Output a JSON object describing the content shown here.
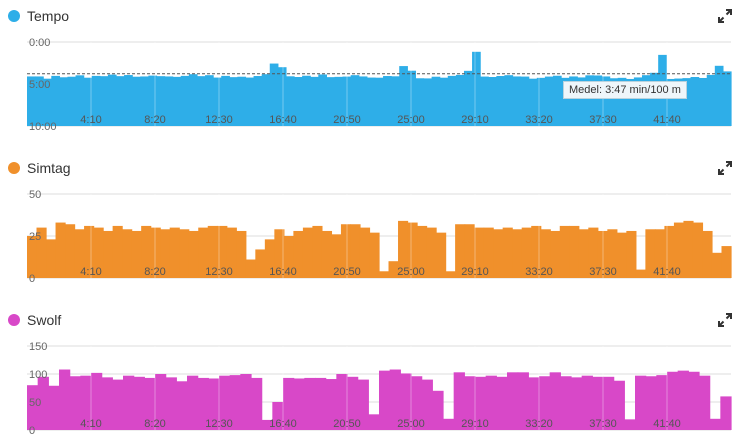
{
  "colors": {
    "tempo": "#2eaee8",
    "simtag": "#f0902b",
    "swolf": "#d848c8",
    "grid": "#dddddd"
  },
  "icons": {
    "expand": "expand-arrows-icon"
  },
  "chart_data": [
    {
      "type": "bar",
      "title": "Tempo",
      "y_tick_labels": [
        "0:00",
        "5:00",
        "10:00"
      ],
      "ylim": [
        0,
        600
      ],
      "y_inverted": true,
      "x_tick_labels": [
        "4:10",
        "8:20",
        "12:30",
        "16:40",
        "20:50",
        "25:00",
        "29:10",
        "33:20",
        "37:30",
        "41:40"
      ],
      "x_range": [
        "0:00",
        "45:50"
      ],
      "average_label": "Medel: 3:47 min/100 m",
      "average_value": 227,
      "series": [
        {
          "values_unit": "seconds per 100 m",
          "values": [
            246,
            246,
            262,
            242,
            252,
            248,
            238,
            255,
            242,
            244,
            233,
            244,
            236,
            248,
            246,
            240,
            244,
            246,
            249,
            242,
            230,
            244,
            237,
            254,
            242,
            251,
            248,
            254,
            243,
            230,
            154,
            180,
            245,
            250,
            241,
            249,
            232,
            251,
            249,
            247,
            237,
            246,
            254,
            255,
            243,
            245,
            172,
            205,
            259,
            260,
            248,
            255,
            242,
            235,
            206,
            70,
            247,
            250,
            243,
            237,
            246,
            247,
            262,
            256,
            247,
            241,
            256,
            246,
            253,
            238,
            239,
            246,
            259,
            256,
            264,
            253,
            237,
            220,
            92,
            264,
            261,
            258,
            250,
            257,
            235,
            170,
            210
          ]
        }
      ]
    },
    {
      "type": "bar",
      "title": "Simtag",
      "y_tick_labels": [
        "0",
        "25",
        "50"
      ],
      "ylim": [
        0,
        50
      ],
      "x_tick_labels": [
        "4:10",
        "8:20",
        "12:30",
        "16:40",
        "20:50",
        "25:00",
        "29:10",
        "33:20",
        "37:30",
        "41:40"
      ],
      "x_range": [
        "0:00",
        "45:50"
      ],
      "series": [
        {
          "values": [
            25,
            30,
            23,
            33,
            32,
            29,
            31,
            30,
            28,
            31,
            29,
            28,
            31,
            30,
            29,
            30,
            29,
            28,
            30,
            31,
            31,
            30,
            28,
            11,
            17,
            23,
            29,
            25,
            28,
            30,
            31,
            28,
            26,
            32,
            32,
            30,
            27,
            4,
            10,
            34,
            33,
            31,
            30,
            27,
            4,
            32,
            32,
            30,
            30,
            29,
            30,
            29,
            30,
            31,
            29,
            28,
            31,
            31,
            29,
            30,
            28,
            29,
            27,
            28,
            5,
            29,
            29,
            31,
            33,
            34,
            33,
            28,
            15,
            19
          ]
        }
      ]
    },
    {
      "type": "bar",
      "title": "Swolf",
      "y_tick_labels": [
        "0",
        "50",
        "100",
        "150"
      ],
      "ylim": [
        0,
        150
      ],
      "x_tick_labels": [
        "4:10",
        "8:20",
        "12:30",
        "16:40",
        "20:50",
        "25:00",
        "29:10",
        "33:20",
        "37:30",
        "41:40"
      ],
      "x_range": [
        "0:00",
        "45:50"
      ],
      "series": [
        {
          "values": [
            80,
            95,
            79,
            108,
            96,
            97,
            102,
            94,
            90,
            97,
            95,
            93,
            100,
            94,
            87,
            97,
            93,
            92,
            97,
            98,
            100,
            93,
            18,
            50,
            93,
            92,
            93,
            93,
            91,
            100,
            95,
            90,
            28,
            106,
            108,
            101,
            96,
            90,
            70,
            20,
            103,
            96,
            95,
            97,
            95,
            103,
            103,
            94,
            96,
            103,
            96,
            94,
            97,
            95,
            95,
            88,
            19,
            97,
            96,
            98,
            104,
            106,
            104,
            97,
            20,
            60
          ]
        }
      ]
    }
  ]
}
